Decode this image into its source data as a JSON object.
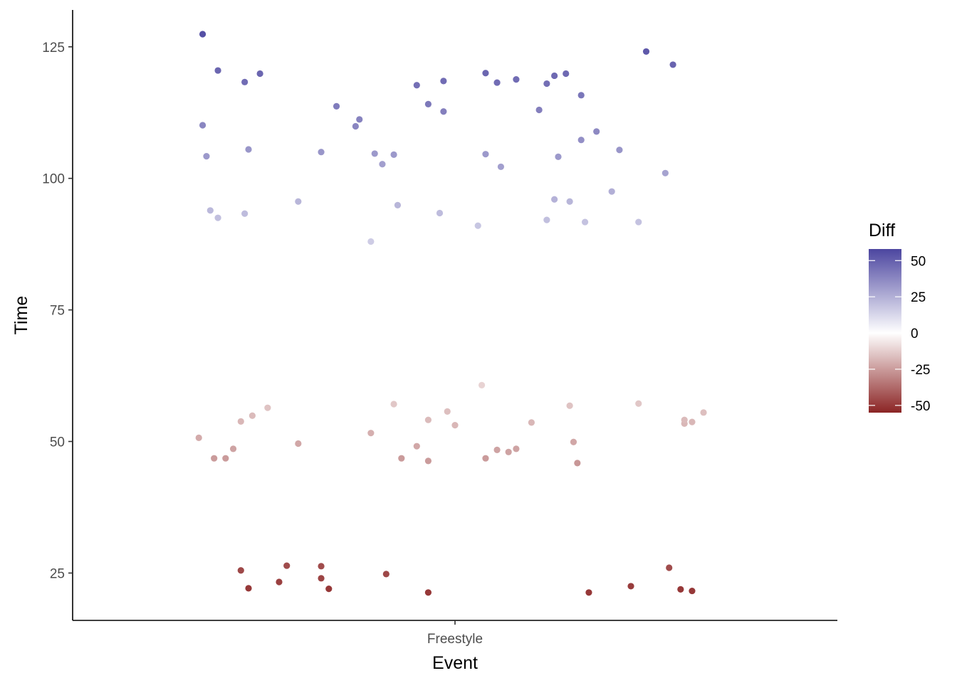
{
  "chart_data": {
    "type": "scatter",
    "xlabel": "Event",
    "ylabel": "Time",
    "categories": [
      "Freestyle"
    ],
    "ylim": [
      16,
      132
    ],
    "yticks": [
      25,
      50,
      75,
      100,
      125
    ],
    "grid": false,
    "jitter": true,
    "color_by": "Diff",
    "legend": {
      "title": "Diff",
      "position": "right",
      "type": "colorbar",
      "range": [
        -55,
        58
      ],
      "ticks": [
        50,
        25,
        0,
        -25,
        -50
      ],
      "colors": {
        "low": "#8b2424",
        "mid": "#ffffff",
        "high": "#4c46a0"
      }
    },
    "points": [
      {
        "x": -0.66,
        "y": 127.4,
        "diff": 55
      },
      {
        "x": -0.62,
        "y": 120.5,
        "diff": 48
      },
      {
        "x": -0.55,
        "y": 118.3,
        "diff": 46
      },
      {
        "x": -0.51,
        "y": 119.9,
        "diff": 48
      },
      {
        "x": -0.66,
        "y": 110.1,
        "diff": 38
      },
      {
        "x": -0.65,
        "y": 104.2,
        "diff": 32
      },
      {
        "x": -0.54,
        "y": 105.5,
        "diff": 33
      },
      {
        "x": -0.64,
        "y": 93.9,
        "diff": 22
      },
      {
        "x": -0.62,
        "y": 92.5,
        "diff": 20
      },
      {
        "x": -0.55,
        "y": 93.3,
        "diff": 21
      },
      {
        "x": -0.41,
        "y": 95.6,
        "diff": 23
      },
      {
        "x": -0.35,
        "y": 105.0,
        "diff": 33
      },
      {
        "x": -0.31,
        "y": 113.7,
        "diff": 41
      },
      {
        "x": -0.26,
        "y": 109.9,
        "diff": 38
      },
      {
        "x": -0.25,
        "y": 111.2,
        "diff": 39
      },
      {
        "x": -0.21,
        "y": 104.7,
        "diff": 32
      },
      {
        "x": -0.19,
        "y": 102.7,
        "diff": 30
      },
      {
        "x": -0.16,
        "y": 104.5,
        "diff": 32
      },
      {
        "x": -0.22,
        "y": 88.0,
        "diff": 16
      },
      {
        "x": -0.15,
        "y": 94.9,
        "diff": 23
      },
      {
        "x": -0.1,
        "y": 117.7,
        "diff": 45
      },
      {
        "x": -0.07,
        "y": 114.1,
        "diff": 42
      },
      {
        "x": -0.03,
        "y": 118.5,
        "diff": 46
      },
      {
        "x": -0.03,
        "y": 112.7,
        "diff": 40
      },
      {
        "x": -0.04,
        "y": 93.4,
        "diff": 21
      },
      {
        "x": 0.06,
        "y": 91.0,
        "diff": 18
      },
      {
        "x": 0.08,
        "y": 120.0,
        "diff": 48
      },
      {
        "x": 0.08,
        "y": 104.6,
        "diff": 32
      },
      {
        "x": 0.11,
        "y": 118.2,
        "diff": 46
      },
      {
        "x": 0.12,
        "y": 102.2,
        "diff": 30
      },
      {
        "x": 0.16,
        "y": 118.8,
        "diff": 46
      },
      {
        "x": 0.22,
        "y": 113.0,
        "diff": 40
      },
      {
        "x": 0.24,
        "y": 118.0,
        "diff": 45
      },
      {
        "x": 0.26,
        "y": 119.5,
        "diff": 47
      },
      {
        "x": 0.27,
        "y": 104.1,
        "diff": 32
      },
      {
        "x": 0.29,
        "y": 119.9,
        "diff": 47
      },
      {
        "x": 0.24,
        "y": 92.1,
        "diff": 20
      },
      {
        "x": 0.26,
        "y": 96.0,
        "diff": 24
      },
      {
        "x": 0.3,
        "y": 95.6,
        "diff": 23
      },
      {
        "x": 0.33,
        "y": 115.8,
        "diff": 43
      },
      {
        "x": 0.33,
        "y": 107.3,
        "diff": 35
      },
      {
        "x": 0.34,
        "y": 91.7,
        "diff": 19
      },
      {
        "x": 0.37,
        "y": 108.9,
        "diff": 37
      },
      {
        "x": 0.41,
        "y": 97.5,
        "diff": 25
      },
      {
        "x": 0.43,
        "y": 105.4,
        "diff": 33
      },
      {
        "x": 0.48,
        "y": 91.7,
        "diff": 19
      },
      {
        "x": 0.5,
        "y": 124.1,
        "diff": 52
      },
      {
        "x": 0.55,
        "y": 101.0,
        "diff": 29
      },
      {
        "x": 0.57,
        "y": 121.6,
        "diff": 49
      },
      {
        "x": -0.67,
        "y": 50.7,
        "diff": -21
      },
      {
        "x": -0.63,
        "y": 46.8,
        "diff": -25
      },
      {
        "x": -0.6,
        "y": 46.8,
        "diff": -25
      },
      {
        "x": -0.58,
        "y": 48.6,
        "diff": -23
      },
      {
        "x": -0.56,
        "y": 53.8,
        "diff": -18
      },
      {
        "x": -0.53,
        "y": 54.9,
        "diff": -17
      },
      {
        "x": -0.49,
        "y": 56.4,
        "diff": -15
      },
      {
        "x": -0.41,
        "y": 49.6,
        "diff": -22
      },
      {
        "x": -0.22,
        "y": 51.6,
        "diff": -20
      },
      {
        "x": -0.16,
        "y": 57.1,
        "diff": -14
      },
      {
        "x": -0.14,
        "y": 46.8,
        "diff": -25
      },
      {
        "x": -0.1,
        "y": 49.1,
        "diff": -22
      },
      {
        "x": -0.07,
        "y": 54.1,
        "diff": -17
      },
      {
        "x": -0.07,
        "y": 46.3,
        "diff": -25
      },
      {
        "x": -0.02,
        "y": 55.7,
        "diff": -16
      },
      {
        "x": 0.0,
        "y": 53.1,
        "diff": -18
      },
      {
        "x": 0.07,
        "y": 60.7,
        "diff": -11
      },
      {
        "x": 0.08,
        "y": 46.8,
        "diff": -25
      },
      {
        "x": 0.11,
        "y": 48.4,
        "diff": -23
      },
      {
        "x": 0.14,
        "y": 48.0,
        "diff": -23
      },
      {
        "x": 0.16,
        "y": 48.6,
        "diff": -23
      },
      {
        "x": 0.2,
        "y": 53.6,
        "diff": -18
      },
      {
        "x": 0.3,
        "y": 56.8,
        "diff": -15
      },
      {
        "x": 0.31,
        "y": 49.9,
        "diff": -22
      },
      {
        "x": 0.32,
        "y": 45.9,
        "diff": -26
      },
      {
        "x": 0.48,
        "y": 57.2,
        "diff": -14
      },
      {
        "x": 0.6,
        "y": 53.4,
        "diff": -18
      },
      {
        "x": 0.6,
        "y": 54.1,
        "diff": -17
      },
      {
        "x": 0.62,
        "y": 53.7,
        "diff": -18
      },
      {
        "x": 0.65,
        "y": 55.5,
        "diff": -16
      },
      {
        "x": -0.56,
        "y": 25.5,
        "diff": -46
      },
      {
        "x": -0.54,
        "y": 22.1,
        "diff": -50
      },
      {
        "x": -0.46,
        "y": 23.3,
        "diff": -48
      },
      {
        "x": -0.44,
        "y": 26.4,
        "diff": -45
      },
      {
        "x": -0.35,
        "y": 26.3,
        "diff": -45
      },
      {
        "x": -0.35,
        "y": 24.0,
        "diff": -47
      },
      {
        "x": -0.33,
        "y": 22.0,
        "diff": -50
      },
      {
        "x": -0.18,
        "y": 24.8,
        "diff": -46
      },
      {
        "x": -0.07,
        "y": 21.3,
        "diff": -50
      },
      {
        "x": 0.35,
        "y": 21.3,
        "diff": -50
      },
      {
        "x": 0.46,
        "y": 22.5,
        "diff": -49
      },
      {
        "x": 0.56,
        "y": 26.0,
        "diff": -45
      },
      {
        "x": 0.59,
        "y": 21.9,
        "diff": -50
      },
      {
        "x": 0.62,
        "y": 21.6,
        "diff": -50
      }
    ]
  }
}
